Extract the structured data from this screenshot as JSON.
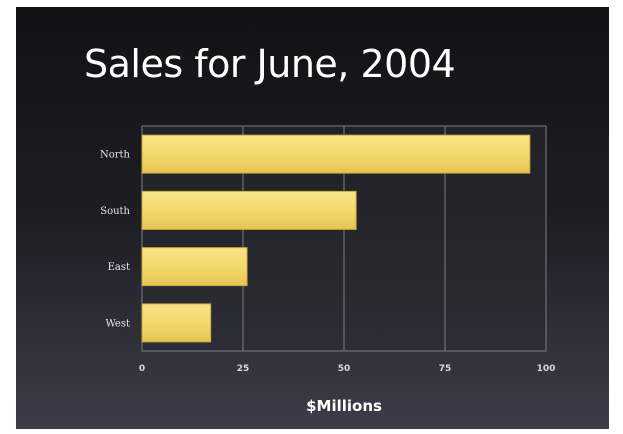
{
  "chart_data": {
    "type": "bar",
    "orientation": "horizontal",
    "title": "Sales for June, 2004",
    "xlabel": "$Millions",
    "ylabel": "",
    "categories": [
      "North",
      "South",
      "East",
      "West"
    ],
    "values": [
      96,
      53,
      26,
      17
    ],
    "xlim": [
      0,
      100
    ],
    "xticks": [
      "0",
      "25",
      "50",
      "75",
      "100"
    ],
    "grid": true,
    "bar_color": "#f3d769",
    "background": "dark gradient"
  }
}
